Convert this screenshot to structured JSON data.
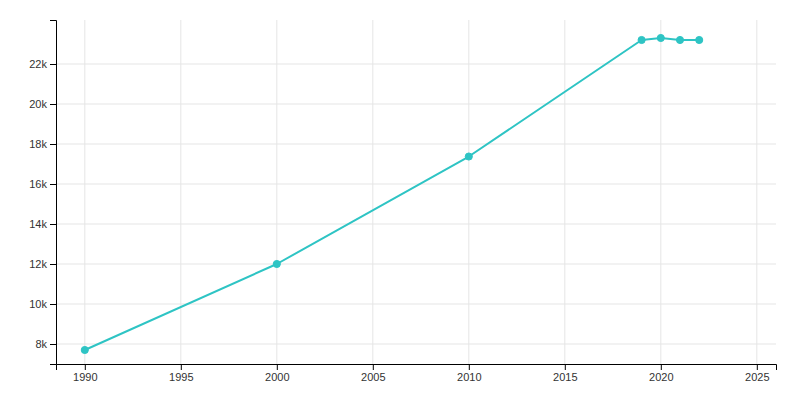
{
  "chart_data": {
    "type": "line",
    "x": [
      1990,
      2000,
      2010,
      2019,
      2020,
      2021,
      2022
    ],
    "values": [
      7700,
      12000,
      17374,
      23200,
      23300,
      23200,
      23200
    ],
    "color": "#2EC4C4",
    "marker": "circle",
    "xlim": [
      1988.5,
      2026
    ],
    "ylim": [
      7000,
      24200
    ],
    "xticks": [
      1990,
      1995,
      2000,
      2005,
      2010,
      2015,
      2020,
      2025
    ],
    "yticks": [
      {
        "value": 8000,
        "label": "8k"
      },
      {
        "value": 10000,
        "label": "10k"
      },
      {
        "value": 12000,
        "label": "12k"
      },
      {
        "value": 14000,
        "label": "14k"
      },
      {
        "value": 16000,
        "label": "16k"
      },
      {
        "value": 18000,
        "label": "18k"
      },
      {
        "value": 20000,
        "label": "20k"
      },
      {
        "value": 22000,
        "label": "22k"
      }
    ],
    "grid": true
  }
}
